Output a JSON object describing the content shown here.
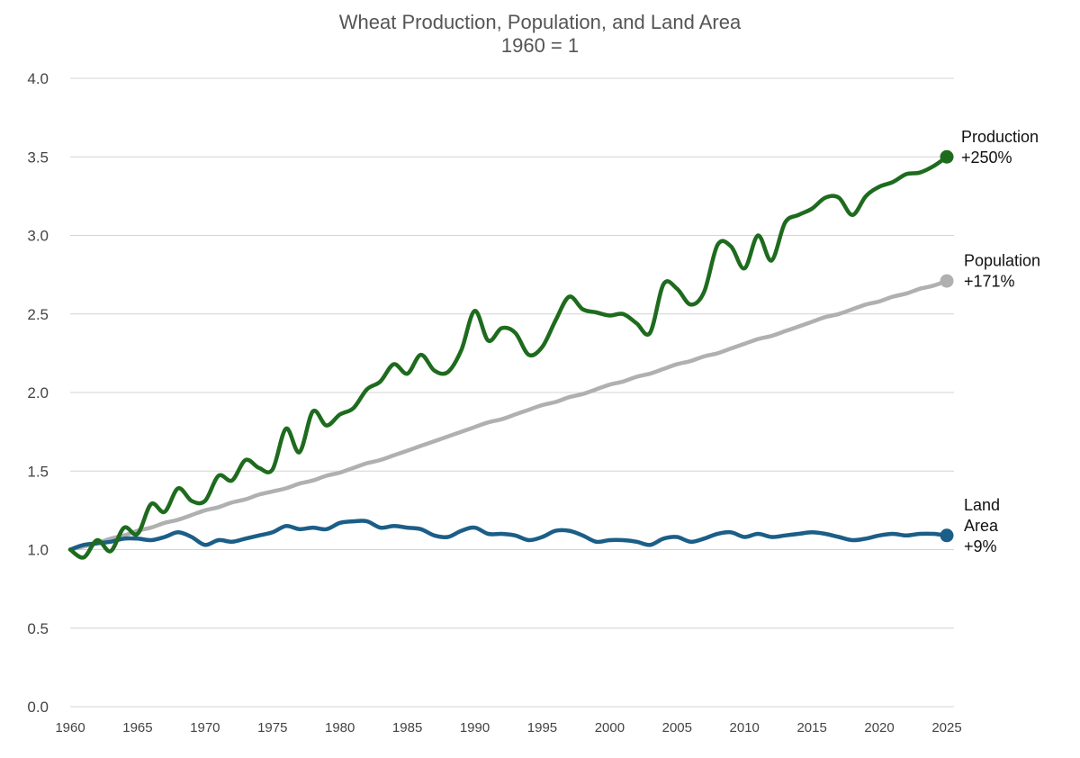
{
  "chart_data": {
    "type": "line",
    "title": "Wheat Production, Population, and Land Area",
    "subtitle": "1960 = 1",
    "xlabel": "",
    "ylabel": "",
    "xlim": [
      1960,
      2025
    ],
    "ylim": [
      0,
      4
    ],
    "grid": true,
    "x_ticks": [
      1960,
      1965,
      1970,
      1975,
      1980,
      1985,
      1990,
      1995,
      2000,
      2005,
      2010,
      2015,
      2020,
      2025
    ],
    "y_ticks": [
      "0.0",
      "0.5",
      "1.0",
      "1.5",
      "2.0",
      "2.5",
      "3.0",
      "3.5",
      "4.0"
    ],
    "x": [
      1960,
      1961,
      1962,
      1963,
      1964,
      1965,
      1966,
      1967,
      1968,
      1969,
      1970,
      1971,
      1972,
      1973,
      1974,
      1975,
      1976,
      1977,
      1978,
      1979,
      1980,
      1981,
      1982,
      1983,
      1984,
      1985,
      1986,
      1987,
      1988,
      1989,
      1990,
      1991,
      1992,
      1993,
      1994,
      1995,
      1996,
      1997,
      1998,
      1999,
      2000,
      2001,
      2002,
      2003,
      2004,
      2005,
      2006,
      2007,
      2008,
      2009,
      2010,
      2011,
      2012,
      2013,
      2014,
      2015,
      2016,
      2017,
      2018,
      2019,
      2020,
      2021,
      2022,
      2023,
      2024,
      2025
    ],
    "series": [
      {
        "name": "Production",
        "end_label_lines": [
          "Production",
          "+250%"
        ],
        "color": "#1e6b1e",
        "values": [
          1.0,
          0.95,
          1.06,
          0.99,
          1.14,
          1.1,
          1.29,
          1.24,
          1.39,
          1.31,
          1.31,
          1.47,
          1.44,
          1.57,
          1.52,
          1.51,
          1.77,
          1.62,
          1.88,
          1.79,
          1.86,
          1.9,
          2.02,
          2.07,
          2.18,
          2.12,
          2.24,
          2.14,
          2.13,
          2.27,
          2.52,
          2.33,
          2.41,
          2.38,
          2.24,
          2.29,
          2.46,
          2.61,
          2.53,
          2.51,
          2.49,
          2.5,
          2.44,
          2.38,
          2.69,
          2.66,
          2.56,
          2.64,
          2.94,
          2.93,
          2.79,
          3.0,
          2.84,
          3.08,
          3.13,
          3.17,
          3.24,
          3.24,
          3.13,
          3.25,
          3.31,
          3.34,
          3.39,
          3.4,
          3.44,
          3.5
        ]
      },
      {
        "name": "Population",
        "end_label_lines": [
          "Population",
          "+171%"
        ],
        "color": "#b0b0b0",
        "values": [
          1.0,
          1.02,
          1.04,
          1.07,
          1.09,
          1.12,
          1.14,
          1.17,
          1.19,
          1.22,
          1.25,
          1.27,
          1.3,
          1.32,
          1.35,
          1.37,
          1.39,
          1.42,
          1.44,
          1.47,
          1.49,
          1.52,
          1.55,
          1.57,
          1.6,
          1.63,
          1.66,
          1.69,
          1.72,
          1.75,
          1.78,
          1.81,
          1.83,
          1.86,
          1.89,
          1.92,
          1.94,
          1.97,
          1.99,
          2.02,
          2.05,
          2.07,
          2.1,
          2.12,
          2.15,
          2.18,
          2.2,
          2.23,
          2.25,
          2.28,
          2.31,
          2.34,
          2.36,
          2.39,
          2.42,
          2.45,
          2.48,
          2.5,
          2.53,
          2.56,
          2.58,
          2.61,
          2.63,
          2.66,
          2.68,
          2.71
        ]
      },
      {
        "name": "Land Area",
        "end_label_lines": [
          "Land",
          "Area",
          "+9%"
        ],
        "color": "#1b5e87",
        "values": [
          1.0,
          1.03,
          1.04,
          1.05,
          1.07,
          1.07,
          1.06,
          1.08,
          1.11,
          1.08,
          1.03,
          1.06,
          1.05,
          1.07,
          1.09,
          1.11,
          1.15,
          1.13,
          1.14,
          1.13,
          1.17,
          1.18,
          1.18,
          1.14,
          1.15,
          1.14,
          1.13,
          1.09,
          1.08,
          1.12,
          1.14,
          1.1,
          1.1,
          1.09,
          1.06,
          1.08,
          1.12,
          1.12,
          1.09,
          1.05,
          1.06,
          1.06,
          1.05,
          1.03,
          1.07,
          1.08,
          1.05,
          1.07,
          1.1,
          1.11,
          1.08,
          1.1,
          1.08,
          1.09,
          1.1,
          1.11,
          1.1,
          1.08,
          1.06,
          1.07,
          1.09,
          1.1,
          1.09,
          1.1,
          1.1,
          1.09
        ]
      }
    ]
  }
}
